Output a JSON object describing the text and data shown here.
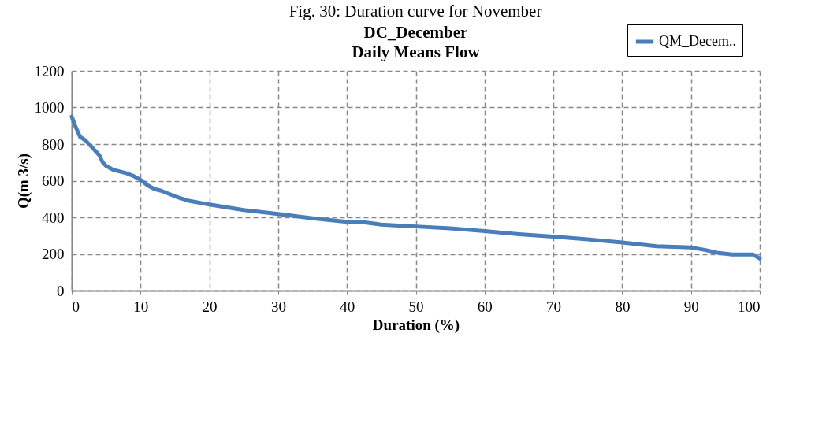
{
  "chart_data": {
    "type": "line",
    "title": "DC_December",
    "subtitle": "Daily Means Flow",
    "xlabel": "Duration (%)",
    "ylabel": "Q(m 3/s)",
    "annotations": [
      "Fig. 30: Duration curve for November"
    ],
    "x": [
      0,
      0.5,
      1.2,
      2,
      3,
      4,
      4.5,
      5,
      6,
      8,
      9,
      10,
      11,
      12,
      13,
      15,
      17,
      20,
      25,
      30,
      35,
      40,
      42,
      45,
      50,
      55,
      60,
      65,
      70,
      75,
      80,
      85,
      90,
      92,
      94,
      96,
      99,
      100
    ],
    "series": [
      {
        "name": "QM_Decem..",
        "color": "#4a7ebb",
        "values": [
          950,
          900,
          840,
          820,
          780,
          740,
          700,
          680,
          660,
          640,
          625,
          605,
          575,
          555,
          545,
          515,
          490,
          470,
          440,
          418,
          395,
          375,
          375,
          360,
          350,
          340,
          325,
          308,
          295,
          280,
          262,
          242,
          235,
          222,
          205,
          197,
          197,
          175
        ]
      }
    ],
    "xlim": [
      0,
      100
    ],
    "xticks": [
      0,
      10,
      20,
      30,
      40,
      50,
      60,
      70,
      80,
      90,
      100
    ],
    "ylim": [
      0,
      1200
    ],
    "yticks": [
      0,
      200,
      400,
      600,
      800,
      1000,
      1200
    ],
    "grid": true,
    "legend": "top right",
    "marker": "none",
    "line_style": "solid"
  }
}
